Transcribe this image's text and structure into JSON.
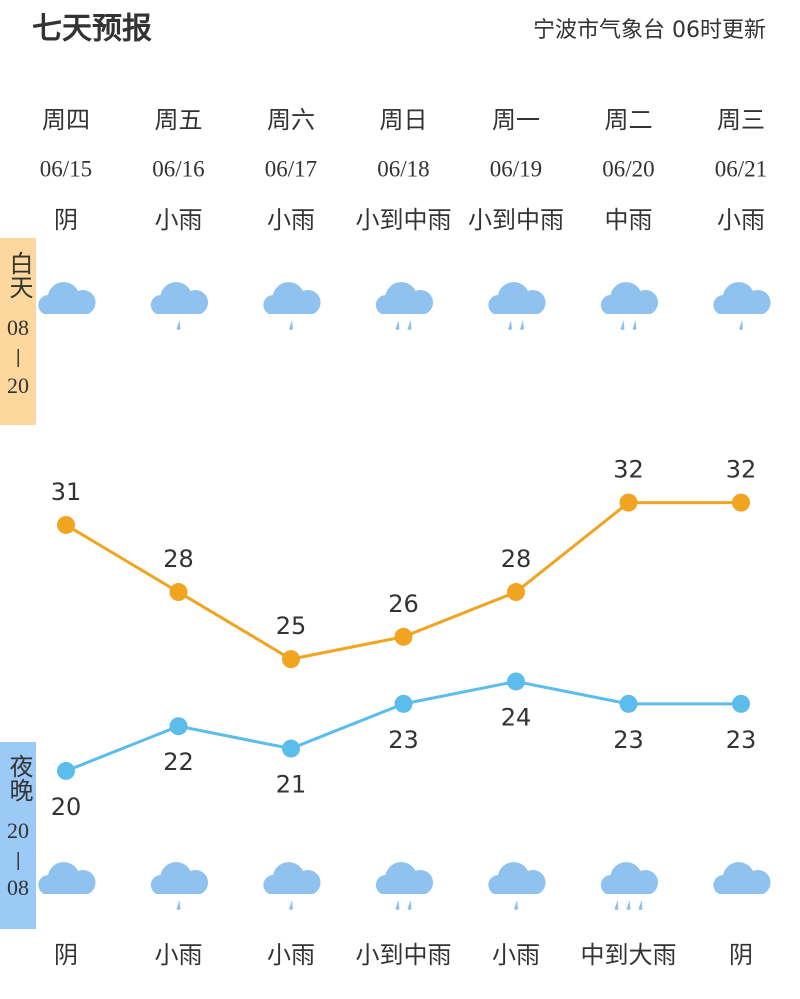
{
  "header": {
    "title": "七天预报",
    "source": "宁波市气象台 06时更新"
  },
  "day_tab": {
    "name": "白天",
    "start": "08",
    "sep": "—",
    "end": "20"
  },
  "night_tab": {
    "name": "夜晚",
    "start": "20",
    "sep": "—",
    "end": "08"
  },
  "days": [
    {
      "weekday": "周四",
      "date": "06/15",
      "day_weather": "阴",
      "night_weather": "阴"
    },
    {
      "weekday": "周五",
      "date": "06/16",
      "day_weather": "小雨",
      "night_weather": "小雨"
    },
    {
      "weekday": "周六",
      "date": "06/17",
      "day_weather": "小雨",
      "night_weather": "小雨"
    },
    {
      "weekday": "周日",
      "date": "06/18",
      "day_weather": "小到中雨",
      "night_weather": "小到中雨"
    },
    {
      "weekday": "周一",
      "date": "06/19",
      "day_weather": "小到中雨",
      "night_weather": "小雨"
    },
    {
      "weekday": "周二",
      "date": "06/20",
      "day_weather": "中雨",
      "night_weather": "中到大雨"
    },
    {
      "weekday": "周三",
      "date": "06/21",
      "day_weather": "小雨",
      "night_weather": "阴"
    }
  ],
  "chart_data": {
    "type": "line",
    "series": [
      {
        "color": "#f0a420",
        "values": [
          31,
          28,
          25,
          26,
          28,
          32,
          32
        ]
      },
      {
        "color": "#5cbcec",
        "values": [
          20,
          22,
          21,
          23,
          24,
          23,
          23
        ]
      }
    ],
    "ylim": [
      18.7,
      34.8
    ]
  }
}
